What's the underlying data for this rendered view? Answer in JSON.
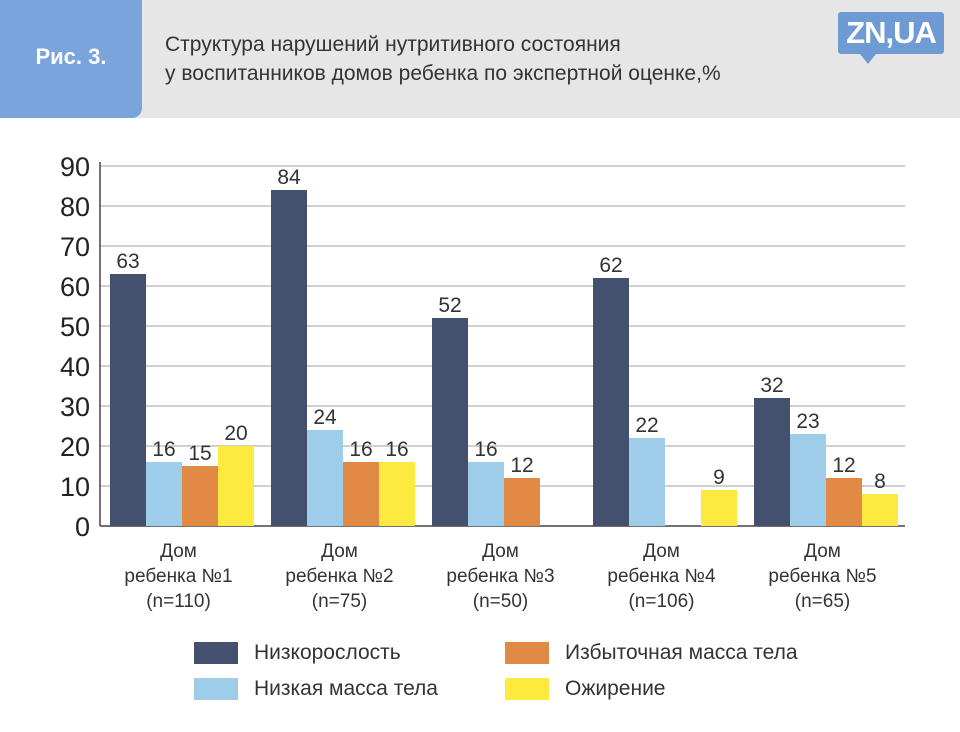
{
  "header": {
    "figure_label": "Рис. 3.",
    "title_line1": "Структура нарушений нутритивного состояния",
    "title_line2": "у воспитанников домов ребенка по экспертной оценке,%",
    "logo_text": "ZN,UA"
  },
  "chart_data": {
    "type": "bar",
    "title": "Структура нарушений нутритивного состояния у воспитанников домов ребенка по экспертной оценке,%",
    "categories": [
      [
        "Дом",
        "ребенка №1",
        "(n=110)"
      ],
      [
        "Дом",
        "ребенка №2",
        "(n=75)"
      ],
      [
        "Дом",
        "ребенка №3",
        "(n=50)"
      ],
      [
        "Дом",
        "ребенка №4",
        "(n=106)"
      ],
      [
        "Дом",
        "ребенка №5",
        "(n=65)"
      ]
    ],
    "series": [
      {
        "name": "Низкорослость",
        "color": "#43506e",
        "values": [
          63,
          84,
          52,
          62,
          32
        ]
      },
      {
        "name": "Низкая масса тела",
        "color": "#9ecde9",
        "values": [
          16,
          24,
          16,
          22,
          23
        ]
      },
      {
        "name": "Избыточная масса тела",
        "color": "#e08a45",
        "values": [
          15,
          16,
          12,
          null,
          12
        ]
      },
      {
        "name": "Ожирение",
        "color": "#fdea3f",
        "values": [
          20,
          16,
          null,
          9,
          8
        ]
      }
    ],
    "ylim": [
      0,
      90
    ],
    "yticks": [
      0,
      10,
      20,
      30,
      40,
      50,
      60,
      70,
      80,
      90
    ],
    "grid": true,
    "legend_position": "bottom",
    "xlabel": "",
    "ylabel": ""
  }
}
